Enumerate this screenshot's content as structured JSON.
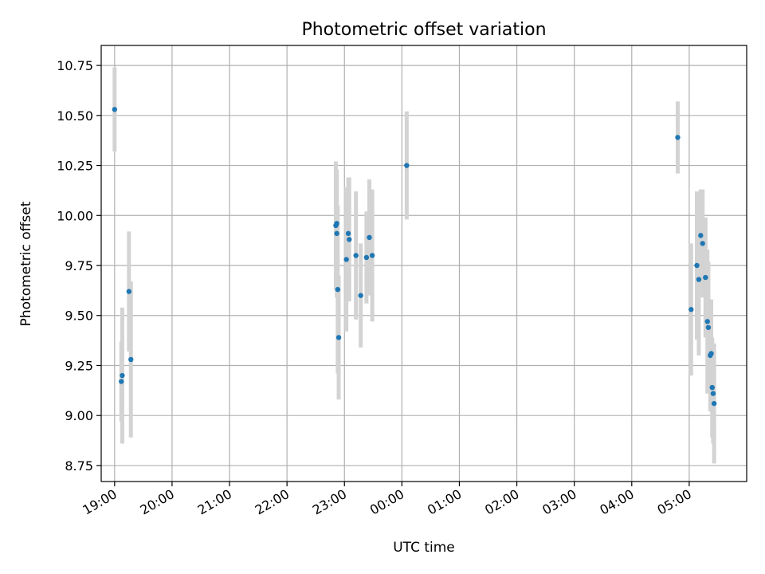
{
  "chart_data": {
    "type": "scatter",
    "title": "Photometric offset variation",
    "xlabel": "UTC time",
    "ylabel": "Photometric offset",
    "grid": true,
    "legend": "none",
    "x_unit": "UTC, hours (wraps past midnight)",
    "xlim": [
      "18:46",
      "06:00"
    ],
    "ylim": [
      8.67,
      10.85
    ],
    "x_ticks": [
      "19:00",
      "20:00",
      "21:00",
      "22:00",
      "23:00",
      "00:00",
      "01:00",
      "02:00",
      "03:00",
      "04:00",
      "05:00"
    ],
    "y_ticks": [
      "8.75",
      "9.00",
      "9.25",
      "9.50",
      "9.75",
      "10.00",
      "10.25",
      "10.50",
      "10.75"
    ],
    "marker_color": "#1f77b4",
    "errorbar_color": "#d3d3d3",
    "series": [
      {
        "points": [
          {
            "x": "19:00",
            "y": 10.53,
            "yerr": 0.21
          },
          {
            "x": "19:07",
            "y": 9.17,
            "yerr": 0.2
          },
          {
            "x": "19:08",
            "y": 9.2,
            "yerr": 0.34
          },
          {
            "x": "19:15",
            "y": 9.62,
            "yerr": 0.3
          },
          {
            "x": "19:17",
            "y": 9.28,
            "yerr": 0.39
          },
          {
            "x": "22:51",
            "y": 9.95,
            "yerr": 0.32
          },
          {
            "x": "22:52",
            "y": 9.96,
            "yerr": 0.25
          },
          {
            "x": "22:52",
            "y": 9.91,
            "yerr": 0.32
          },
          {
            "x": "22:53",
            "y": 9.63,
            "yerr": 0.42
          },
          {
            "x": "22:54",
            "y": 9.39,
            "yerr": 0.31
          },
          {
            "x": "23:02",
            "y": 9.78,
            "yerr": 0.36
          },
          {
            "x": "23:04",
            "y": 9.91,
            "yerr": 0.28
          },
          {
            "x": "23:05",
            "y": 9.88,
            "yerr": 0.31
          },
          {
            "x": "23:12",
            "y": 9.8,
            "yerr": 0.32
          },
          {
            "x": "23:17",
            "y": 9.6,
            "yerr": 0.26
          },
          {
            "x": "23:23",
            "y": 9.79,
            "yerr": 0.23
          },
          {
            "x": "23:26",
            "y": 9.89,
            "yerr": 0.29
          },
          {
            "x": "23:29",
            "y": 9.8,
            "yerr": 0.33
          },
          {
            "x": "00:05",
            "y": 10.25,
            "yerr": 0.27
          },
          {
            "x": "04:48",
            "y": 10.39,
            "yerr": 0.18
          },
          {
            "x": "05:02",
            "y": 9.53,
            "yerr": 0.33
          },
          {
            "x": "05:08",
            "y": 9.75,
            "yerr": 0.37
          },
          {
            "x": "05:10",
            "y": 9.68,
            "yerr": 0.38
          },
          {
            "x": "05:12",
            "y": 9.9,
            "yerr": 0.23
          },
          {
            "x": "05:14",
            "y": 9.86,
            "yerr": 0.27
          },
          {
            "x": "05:17",
            "y": 9.69,
            "yerr": 0.3
          },
          {
            "x": "05:19",
            "y": 9.47,
            "yerr": 0.36
          },
          {
            "x": "05:20",
            "y": 9.44,
            "yerr": 0.33
          },
          {
            "x": "05:22",
            "y": 9.3,
            "yerr": 0.28
          },
          {
            "x": "05:23",
            "y": 9.31,
            "yerr": 0.27
          },
          {
            "x": "05:24",
            "y": 9.14,
            "yerr": 0.25
          },
          {
            "x": "05:25",
            "y": 9.11,
            "yerr": 0.25
          },
          {
            "x": "05:26",
            "y": 9.06,
            "yerr": 0.3
          }
        ]
      }
    ]
  }
}
